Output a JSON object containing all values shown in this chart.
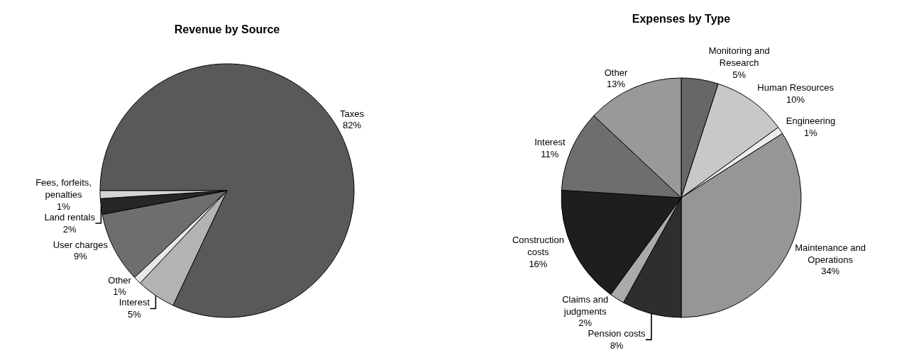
{
  "chart_data": [
    {
      "type": "pie",
      "title": "Revenue by Source",
      "legend": false,
      "categories": [
        "Taxes",
        "Interest",
        "Other",
        "User charges",
        "Land rentals",
        "Fees, forfeits, penalties"
      ],
      "values": [
        82,
        5,
        1,
        9,
        2,
        1
      ],
      "value_labels": [
        "82%",
        "5%",
        "1%",
        "9%",
        "2%",
        "1%"
      ],
      "colors": [
        "#595959",
        "#b3b3b3",
        "#e8e8e8",
        "#6e6e6e",
        "#262626",
        "#d4d4d4"
      ]
    },
    {
      "type": "pie",
      "title": "Expenses by Type",
      "legend": false,
      "categories": [
        "Monitoring and Research",
        "Human Resources",
        "Engineering",
        "Maintenance and Operations",
        "Pension costs",
        "Claims and judgments",
        "Construction costs",
        "Interest",
        "Other"
      ],
      "values": [
        5,
        10,
        1,
        34,
        8,
        2,
        16,
        11,
        13
      ],
      "value_labels": [
        "5%",
        "10%",
        "1%",
        "34%",
        "8%",
        "2%",
        "16%",
        "11%",
        "13%"
      ],
      "colors": [
        "#676767",
        "#c8c8c8",
        "#ececec",
        "#969696",
        "#2e2e2e",
        "#aaaaaa",
        "#1e1e1e",
        "#6e6e6e",
        "#999999"
      ]
    }
  ]
}
